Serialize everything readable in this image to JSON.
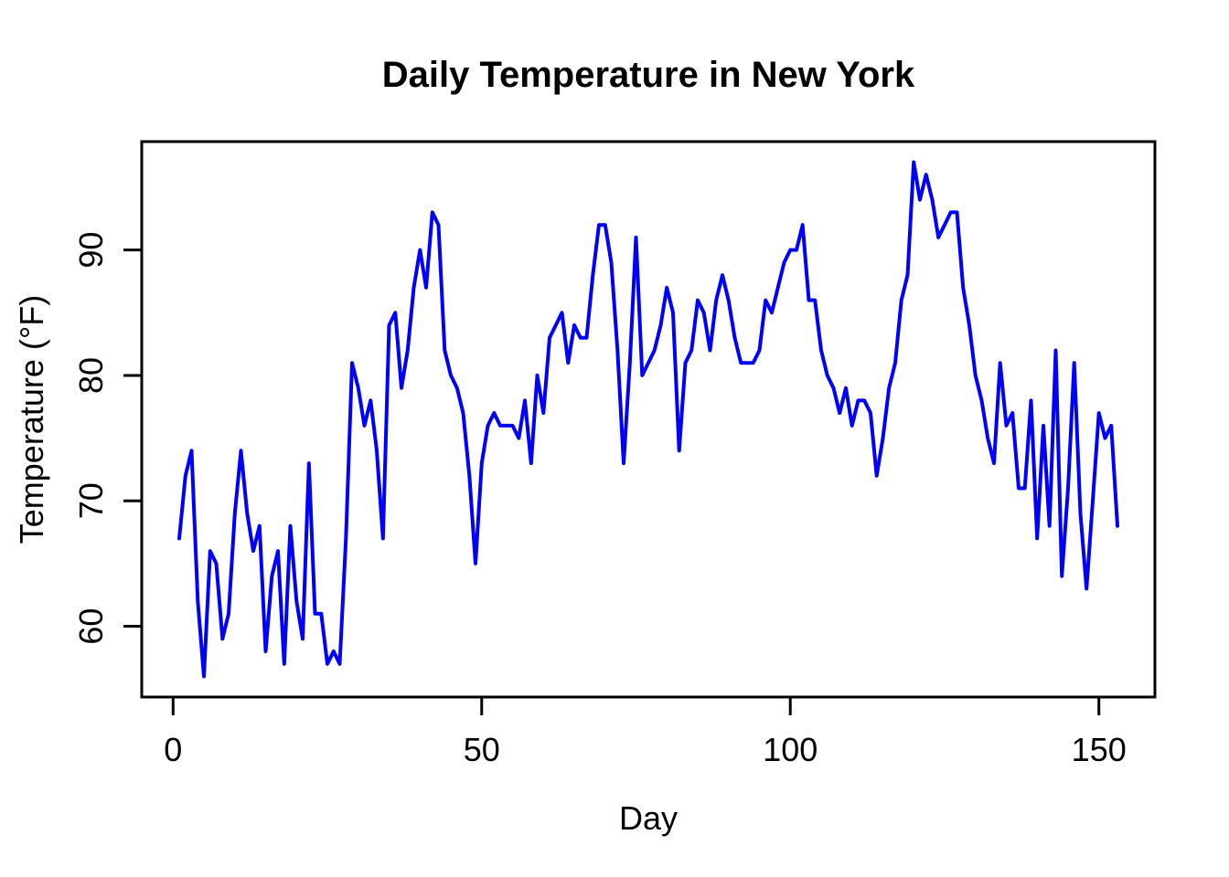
{
  "chart_data": {
    "type": "line",
    "title": "Daily Temperature in New York",
    "xlabel": "Day",
    "ylabel": "Temperature (°F)",
    "x_start": 1,
    "x_ticks": [
      0,
      50,
      100,
      150
    ],
    "y_ticks": [
      60,
      70,
      80,
      90
    ],
    "xlim": [
      -5.08,
      159.08
    ],
    "ylim": [
      54.36,
      98.64
    ],
    "grid": false,
    "legend": "none",
    "line_color": "#0000ff",
    "series": [
      {
        "color": "#0000ff",
        "values": [
          67,
          72,
          74,
          62,
          56,
          66,
          65,
          59,
          61,
          69,
          74,
          69,
          66,
          68,
          58,
          64,
          66,
          57,
          68,
          62,
          59,
          73,
          61,
          61,
          57,
          58,
          57,
          67,
          81,
          79,
          76,
          78,
          74,
          67,
          84,
          85,
          79,
          82,
          87,
          90,
          87,
          93,
          92,
          82,
          80,
          79,
          77,
          72,
          65,
          73,
          76,
          77,
          76,
          76,
          76,
          75,
          78,
          73,
          80,
          77,
          83,
          84,
          85,
          81,
          84,
          83,
          83,
          88,
          92,
          92,
          89,
          82,
          73,
          81,
          91,
          80,
          81,
          82,
          84,
          87,
          85,
          74,
          81,
          82,
          86,
          85,
          82,
          86,
          88,
          86,
          83,
          81,
          81,
          81,
          82,
          86,
          85,
          87,
          89,
          90,
          90,
          92,
          86,
          86,
          82,
          80,
          79,
          77,
          79,
          76,
          78,
          78,
          77,
          72,
          75,
          79,
          81,
          86,
          88,
          97,
          94,
          96,
          94,
          91,
          92,
          93,
          93,
          87,
          84,
          80,
          78,
          75,
          73,
          81,
          76,
          77,
          71,
          71,
          78,
          67,
          76,
          68,
          82,
          64,
          71,
          81,
          69,
          63,
          70,
          77,
          75,
          76,
          68
        ]
      }
    ]
  }
}
